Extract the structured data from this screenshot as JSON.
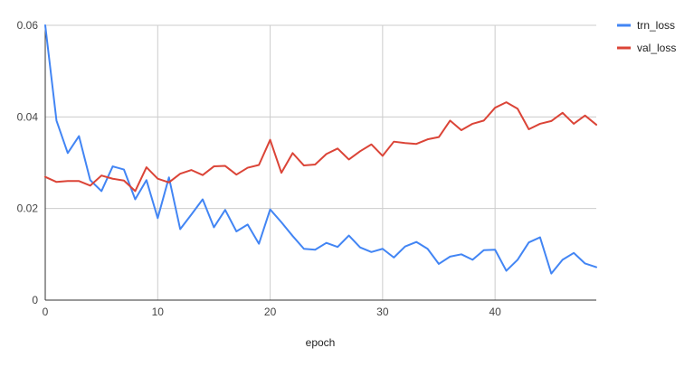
{
  "chart_data": {
    "type": "line",
    "title": "",
    "xlabel": "epoch",
    "ylabel": "",
    "xlim": [
      0,
      49
    ],
    "ylim": [
      0,
      0.06
    ],
    "x_ticks": [
      0,
      10,
      20,
      30,
      40
    ],
    "y_ticks": [
      0,
      0.02,
      0.04,
      0.06
    ],
    "x_tick_labels": [
      "0",
      "10",
      "20",
      "30",
      "40"
    ],
    "y_tick_labels": [
      "0",
      "0.02",
      "0.04",
      "0.06"
    ],
    "grid": true,
    "legend_position": "top-right",
    "x": [
      0,
      1,
      2,
      3,
      4,
      5,
      6,
      7,
      8,
      9,
      10,
      11,
      12,
      13,
      14,
      15,
      16,
      17,
      18,
      19,
      20,
      21,
      22,
      23,
      24,
      25,
      26,
      27,
      28,
      29,
      30,
      31,
      32,
      33,
      34,
      35,
      36,
      37,
      38,
      39,
      40,
      41,
      42,
      43,
      44,
      45,
      46,
      47,
      48,
      49
    ],
    "series": [
      {
        "name": "trn_loss",
        "color": "#4285f4",
        "values": [
          0.06,
          0.0392,
          0.0321,
          0.0358,
          0.0262,
          0.0238,
          0.0292,
          0.0285,
          0.022,
          0.0262,
          0.0179,
          0.0268,
          0.0155,
          0.0187,
          0.022,
          0.0159,
          0.0197,
          0.015,
          0.0165,
          0.0123,
          0.0198,
          0.017,
          0.014,
          0.0112,
          0.011,
          0.0125,
          0.0116,
          0.0141,
          0.0115,
          0.0105,
          0.0112,
          0.0093,
          0.0117,
          0.0127,
          0.0112,
          0.0079,
          0.0095,
          0.01,
          0.0088,
          0.0109,
          0.011,
          0.0064,
          0.0088,
          0.0126,
          0.0137,
          0.0058,
          0.0088,
          0.0103,
          0.008,
          0.0072
        ]
      },
      {
        "name": "val_loss",
        "color": "#db4437",
        "values": [
          0.0269,
          0.0258,
          0.026,
          0.026,
          0.025,
          0.0272,
          0.0265,
          0.0261,
          0.0238,
          0.029,
          0.0265,
          0.0257,
          0.0276,
          0.0284,
          0.0273,
          0.0292,
          0.0293,
          0.0274,
          0.0289,
          0.0295,
          0.035,
          0.0278,
          0.0321,
          0.0294,
          0.0296,
          0.0319,
          0.0331,
          0.0307,
          0.0325,
          0.034,
          0.0315,
          0.0346,
          0.0343,
          0.0341,
          0.0351,
          0.0356,
          0.0392,
          0.0371,
          0.0385,
          0.0392,
          0.042,
          0.0432,
          0.0418,
          0.0373,
          0.0385,
          0.0391,
          0.0409,
          0.0385,
          0.0403,
          0.0383
        ]
      }
    ]
  }
}
